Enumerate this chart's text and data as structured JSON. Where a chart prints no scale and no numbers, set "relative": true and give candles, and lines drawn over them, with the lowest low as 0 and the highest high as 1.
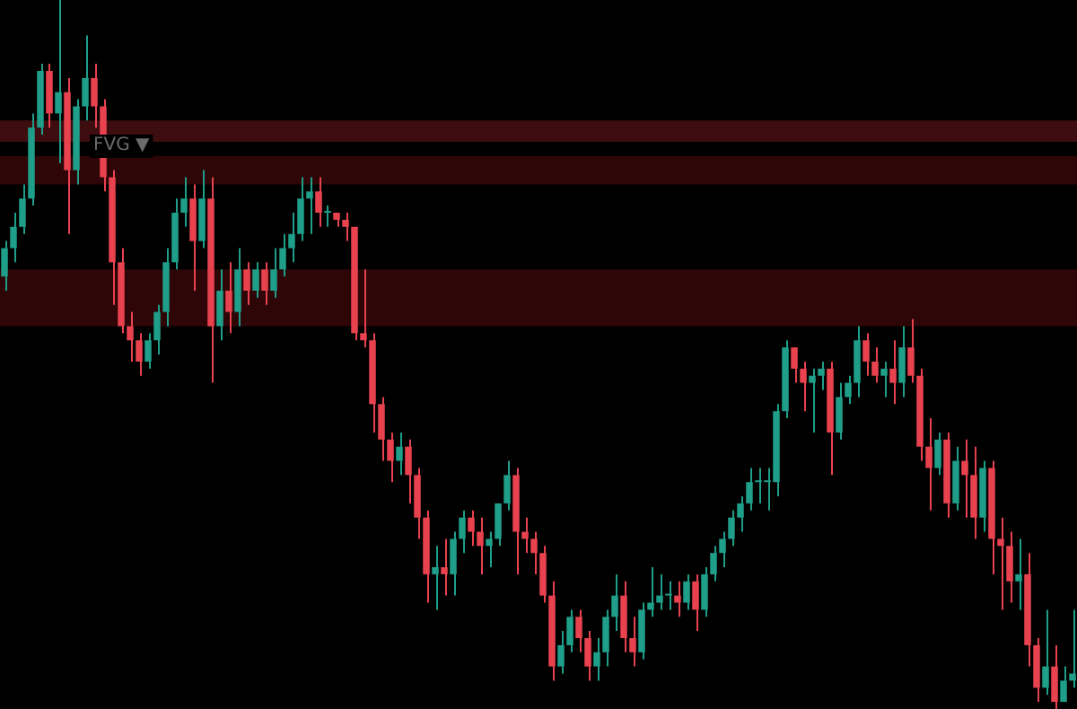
{
  "chart_data": {
    "type": "candlestick",
    "relative": true,
    "categories": [
      null,
      null,
      null,
      null,
      null,
      null,
      null,
      null,
      null,
      null,
      null,
      null,
      null,
      null,
      null,
      null,
      null,
      null,
      null,
      null,
      null,
      null,
      null,
      null,
      null,
      null,
      null,
      null,
      null,
      null,
      null,
      null,
      null,
      null,
      null,
      null,
      null,
      null,
      null,
      null,
      null,
      null,
      null,
      null,
      null,
      null,
      null,
      null,
      null,
      null,
      null,
      null,
      null,
      null,
      null,
      null,
      null,
      null,
      null,
      null,
      null,
      null,
      null,
      null,
      null,
      null,
      null,
      null,
      null,
      null,
      null,
      null,
      null,
      null,
      null,
      null,
      null,
      null,
      null,
      null,
      null,
      null,
      null,
      null,
      null,
      null,
      null,
      null,
      null,
      null,
      null,
      null,
      null,
      null,
      null,
      null,
      null,
      null,
      null,
      null,
      null,
      null,
      null,
      null,
      null,
      null,
      null,
      null,
      null,
      null,
      null,
      null,
      null,
      null,
      null,
      null,
      null,
      null,
      null,
      null
    ],
    "ohlc": [
      [
        0.61,
        0.66,
        0.59,
        0.65
      ],
      [
        0.65,
        0.7,
        0.63,
        0.68
      ],
      [
        0.68,
        0.74,
        0.67,
        0.72
      ],
      [
        0.72,
        0.84,
        0.71,
        0.82
      ],
      [
        0.82,
        0.91,
        0.81,
        0.9
      ],
      [
        0.9,
        0.91,
        0.82,
        0.84
      ],
      [
        0.84,
        1.0,
        0.77,
        0.87
      ],
      [
        0.87,
        0.89,
        0.67,
        0.76
      ],
      [
        0.76,
        0.86,
        0.74,
        0.85
      ],
      [
        0.85,
        0.95,
        0.83,
        0.89
      ],
      [
        0.89,
        0.91,
        0.82,
        0.85
      ],
      [
        0.85,
        0.86,
        0.73,
        0.75
      ],
      [
        0.75,
        0.76,
        0.57,
        0.63
      ],
      [
        0.63,
        0.65,
        0.53,
        0.54
      ],
      [
        0.54,
        0.56,
        0.49,
        0.52
      ],
      [
        0.52,
        0.53,
        0.47,
        0.49
      ],
      [
        0.49,
        0.53,
        0.48,
        0.52
      ],
      [
        0.52,
        0.57,
        0.5,
        0.56
      ],
      [
        0.56,
        0.65,
        0.54,
        0.63
      ],
      [
        0.63,
        0.72,
        0.62,
        0.7
      ],
      [
        0.7,
        0.75,
        0.68,
        0.72
      ],
      [
        0.72,
        0.74,
        0.59,
        0.66
      ],
      [
        0.66,
        0.76,
        0.65,
        0.72
      ],
      [
        0.72,
        0.75,
        0.46,
        0.54
      ],
      [
        0.54,
        0.62,
        0.52,
        0.59
      ],
      [
        0.59,
        0.63,
        0.53,
        0.56
      ],
      [
        0.56,
        0.65,
        0.54,
        0.62
      ],
      [
        0.62,
        0.63,
        0.57,
        0.59
      ],
      [
        0.59,
        0.63,
        0.58,
        0.62
      ],
      [
        0.62,
        0.63,
        0.57,
        0.59
      ],
      [
        0.59,
        0.65,
        0.58,
        0.62
      ],
      [
        0.62,
        0.67,
        0.61,
        0.65
      ],
      [
        0.65,
        0.7,
        0.63,
        0.67
      ],
      [
        0.67,
        0.75,
        0.66,
        0.72
      ],
      [
        0.72,
        0.75,
        0.67,
        0.73
      ],
      [
        0.73,
        0.75,
        0.68,
        0.7
      ],
      [
        0.7,
        0.71,
        0.68,
        0.7
      ],
      [
        0.7,
        0.7,
        0.68,
        0.69
      ],
      [
        0.69,
        0.7,
        0.66,
        0.68
      ],
      [
        0.68,
        0.68,
        0.52,
        0.53
      ],
      [
        0.53,
        0.62,
        0.51,
        0.52
      ],
      [
        0.52,
        0.53,
        0.39,
        0.43
      ],
      [
        0.43,
        0.44,
        0.35,
        0.38
      ],
      [
        0.38,
        0.39,
        0.32,
        0.35
      ],
      [
        0.35,
        0.39,
        0.33,
        0.37
      ],
      [
        0.37,
        0.38,
        0.29,
        0.33
      ],
      [
        0.33,
        0.34,
        0.24,
        0.27
      ],
      [
        0.27,
        0.28,
        0.15,
        0.19
      ],
      [
        0.19,
        0.23,
        0.14,
        0.2
      ],
      [
        0.2,
        0.24,
        0.16,
        0.19
      ],
      [
        0.19,
        0.25,
        0.16,
        0.24
      ],
      [
        0.24,
        0.28,
        0.22,
        0.27
      ],
      [
        0.27,
        0.28,
        0.23,
        0.25
      ],
      [
        0.25,
        0.27,
        0.19,
        0.23
      ],
      [
        0.23,
        0.25,
        0.2,
        0.24
      ],
      [
        0.24,
        0.29,
        0.23,
        0.29
      ],
      [
        0.29,
        0.35,
        0.28,
        0.33
      ],
      [
        0.33,
        0.34,
        0.19,
        0.25
      ],
      [
        0.25,
        0.27,
        0.22,
        0.24
      ],
      [
        0.24,
        0.25,
        0.19,
        0.22
      ],
      [
        0.22,
        0.23,
        0.15,
        0.16
      ],
      [
        0.16,
        0.18,
        0.04,
        0.06
      ],
      [
        0.06,
        0.11,
        0.05,
        0.09
      ],
      [
        0.09,
        0.14,
        0.08,
        0.13
      ],
      [
        0.13,
        0.14,
        0.08,
        0.1
      ],
      [
        0.1,
        0.11,
        0.04,
        0.06
      ],
      [
        0.06,
        0.1,
        0.04,
        0.08
      ],
      [
        0.08,
        0.14,
        0.06,
        0.13
      ],
      [
        0.13,
        0.19,
        0.11,
        0.16
      ],
      [
        0.16,
        0.18,
        0.08,
        0.1
      ],
      [
        0.1,
        0.13,
        0.06,
        0.08
      ],
      [
        0.08,
        0.15,
        0.07,
        0.14
      ],
      [
        0.14,
        0.2,
        0.13,
        0.15
      ],
      [
        0.15,
        0.19,
        0.14,
        0.16
      ],
      [
        0.16,
        0.18,
        0.14,
        0.16
      ],
      [
        0.16,
        0.18,
        0.13,
        0.15
      ],
      [
        0.15,
        0.19,
        0.14,
        0.18
      ],
      [
        0.18,
        0.19,
        0.11,
        0.14
      ],
      [
        0.14,
        0.2,
        0.13,
        0.19
      ],
      [
        0.19,
        0.23,
        0.18,
        0.22
      ],
      [
        0.22,
        0.25,
        0.2,
        0.24
      ],
      [
        0.24,
        0.28,
        0.23,
        0.27
      ],
      [
        0.27,
        0.3,
        0.25,
        0.29
      ],
      [
        0.29,
        0.34,
        0.28,
        0.32
      ],
      [
        0.32,
        0.34,
        0.29,
        0.32
      ],
      [
        0.32,
        0.34,
        0.28,
        0.32
      ],
      [
        0.32,
        0.43,
        0.3,
        0.42
      ],
      [
        0.42,
        0.52,
        0.41,
        0.51
      ],
      [
        0.51,
        0.51,
        0.46,
        0.48
      ],
      [
        0.48,
        0.49,
        0.42,
        0.46
      ],
      [
        0.46,
        0.48,
        0.39,
        0.47
      ],
      [
        0.47,
        0.49,
        0.45,
        0.48
      ],
      [
        0.48,
        0.49,
        0.33,
        0.39
      ],
      [
        0.39,
        0.46,
        0.38,
        0.44
      ],
      [
        0.44,
        0.47,
        0.43,
        0.46
      ],
      [
        0.46,
        0.54,
        0.44,
        0.52
      ],
      [
        0.52,
        0.53,
        0.47,
        0.49
      ],
      [
        0.49,
        0.51,
        0.46,
        0.47
      ],
      [
        0.47,
        0.49,
        0.44,
        0.48
      ],
      [
        0.48,
        0.52,
        0.43,
        0.46
      ],
      [
        0.46,
        0.54,
        0.44,
        0.51
      ],
      [
        0.51,
        0.55,
        0.46,
        0.47
      ],
      [
        0.47,
        0.48,
        0.35,
        0.37
      ],
      [
        0.37,
        0.41,
        0.28,
        0.34
      ],
      [
        0.34,
        0.39,
        0.33,
        0.38
      ],
      [
        0.38,
        0.39,
        0.27,
        0.29
      ],
      [
        0.29,
        0.37,
        0.28,
        0.35
      ],
      [
        0.35,
        0.38,
        0.27,
        0.33
      ],
      [
        0.33,
        0.37,
        0.24,
        0.27
      ],
      [
        0.27,
        0.35,
        0.25,
        0.34
      ],
      [
        0.34,
        0.35,
        0.19,
        0.24
      ],
      [
        0.24,
        0.27,
        0.14,
        0.23
      ],
      [
        0.23,
        0.25,
        0.15,
        0.18
      ],
      [
        0.18,
        0.24,
        0.14,
        0.19
      ],
      [
        0.19,
        0.22,
        0.06,
        0.09
      ],
      [
        0.09,
        0.1,
        0.01,
        0.03
      ],
      [
        0.03,
        0.14,
        0.02,
        0.06
      ],
      [
        0.06,
        0.09,
        0.0,
        0.01
      ],
      [
        0.01,
        0.06,
        0.01,
        0.04
      ],
      [
        0.04,
        0.14,
        0.03,
        0.05
      ]
    ],
    "bands": [
      {
        "axis": "y",
        "from": 0.8,
        "to": 0.83,
        "color": "#3d0d10"
      },
      {
        "axis": "y",
        "from": 0.74,
        "to": 0.78,
        "color": "#2e0607"
      },
      {
        "axis": "y",
        "from": 0.54,
        "to": 0.62,
        "color": "#2e0607"
      }
    ],
    "annotations": [
      "FVG ▼"
    ]
  }
}
